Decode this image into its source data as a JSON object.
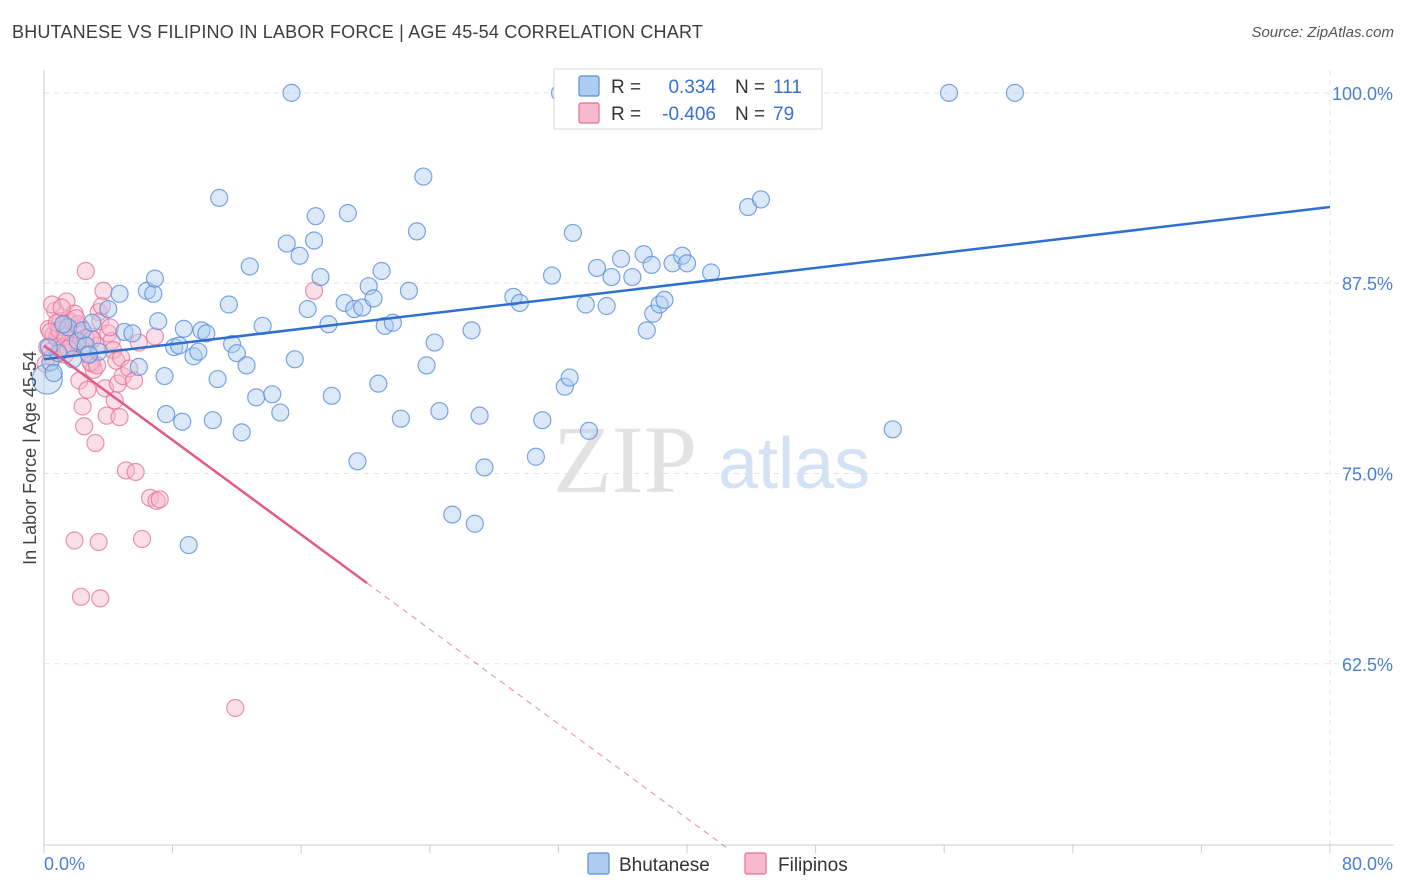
{
  "title": "BHUTANESE VS FILIPINO IN LABOR FORCE | AGE 45-54 CORRELATION CHART",
  "source": "Source: ZipAtlas.com",
  "watermark": {
    "zip": "ZIP",
    "atlas": "atlas"
  },
  "colors": {
    "bhutanese_fill": "#aecbf0",
    "bhutanese_stroke": "#5b8fd9",
    "bhutanese_line": "#2f6fd0",
    "filipino_fill": "#f7b9cd",
    "filipino_stroke": "#e36f96",
    "filipino_line": "#e05a8a",
    "grid": "#e4e4e4",
    "axis_text": "#4a7fd4"
  },
  "legend": {
    "rows": [
      {
        "r_label": "R =",
        "r_value": "0.334",
        "n_label": "N =",
        "n_value": "111",
        "series": "Bhutanese"
      },
      {
        "r_label": "R =",
        "r_value": "-0.406",
        "n_label": "N =",
        "n_value": "79",
        "series": "Filipinos"
      }
    ]
  },
  "bottom_legend": [
    "Bhutanese",
    "Filipinos"
  ],
  "chart_data": {
    "type": "scatter",
    "title": "BHUTANESE VS FILIPINO IN LABOR FORCE | AGE 45-54 CORRELATION CHART",
    "xlabel": "",
    "ylabel": "In Labor Force | Age 45-54",
    "xlim": [
      0,
      80
    ],
    "ylim": [
      50.6,
      101.5
    ],
    "x_tick_labels": [
      {
        "value": 0,
        "label": "0.0%"
      },
      {
        "value": 80,
        "label": "80.0%"
      }
    ],
    "y_tick_labels": [
      {
        "value": 100,
        "label": "100.0%"
      },
      {
        "value": 87.5,
        "label": "87.5%"
      },
      {
        "value": 75,
        "label": "75.0%"
      },
      {
        "value": 62.5,
        "label": "62.5%"
      }
    ],
    "grid": true,
    "series": [
      {
        "name": "Bhutanese",
        "trend": {
          "x": [
            0,
            80
          ],
          "y": [
            82.5,
            92.5
          ],
          "style": "solid"
        },
        "points": [
          [
            0.2,
            81.2
          ],
          [
            0.4,
            82.3
          ],
          [
            0.9,
            82.9
          ],
          [
            1.5,
            84.6
          ],
          [
            2.1,
            83.7
          ],
          [
            2.4,
            84.4
          ],
          [
            2.6,
            83.4
          ],
          [
            3.4,
            83.0
          ],
          [
            4.0,
            85.8
          ],
          [
            4.7,
            86.8
          ],
          [
            5.0,
            84.3
          ],
          [
            5.5,
            84.2
          ],
          [
            6.4,
            87.0
          ],
          [
            6.8,
            86.8
          ],
          [
            6.9,
            87.8
          ],
          [
            7.5,
            81.4
          ],
          [
            7.6,
            78.9
          ],
          [
            8.1,
            83.3
          ],
          [
            8.6,
            78.4
          ],
          [
            8.7,
            84.5
          ],
          [
            9.3,
            82.7
          ],
          [
            9.6,
            83.0
          ],
          [
            9.8,
            84.4
          ],
          [
            10.1,
            84.2
          ],
          [
            10.5,
            78.5
          ],
          [
            10.8,
            81.2
          ],
          [
            10.9,
            93.1
          ],
          [
            11.5,
            86.1
          ],
          [
            11.7,
            83.5
          ],
          [
            12.0,
            82.9
          ],
          [
            12.3,
            77.7
          ],
          [
            12.6,
            82.1
          ],
          [
            12.8,
            88.6
          ],
          [
            13.2,
            80.0
          ],
          [
            13.6,
            84.7
          ],
          [
            14.2,
            80.2
          ],
          [
            14.7,
            79.0
          ],
          [
            15.1,
            90.1
          ],
          [
            15.4,
            100.0
          ],
          [
            15.6,
            82.5
          ],
          [
            15.9,
            89.3
          ],
          [
            16.4,
            85.8
          ],
          [
            16.8,
            90.3
          ],
          [
            16.9,
            91.9
          ],
          [
            17.2,
            87.9
          ],
          [
            17.7,
            84.8
          ],
          [
            17.9,
            80.1
          ],
          [
            18.7,
            86.2
          ],
          [
            18.9,
            92.1
          ],
          [
            19.3,
            85.8
          ],
          [
            19.5,
            75.8
          ],
          [
            19.8,
            85.9
          ],
          [
            20.2,
            87.3
          ],
          [
            20.5,
            86.5
          ],
          [
            20.8,
            80.9
          ],
          [
            21.0,
            88.3
          ],
          [
            21.2,
            84.7
          ],
          [
            21.7,
            84.9
          ],
          [
            22.2,
            78.6
          ],
          [
            22.7,
            87.0
          ],
          [
            23.2,
            90.9
          ],
          [
            23.6,
            94.5
          ],
          [
            23.8,
            82.1
          ],
          [
            24.3,
            83.6
          ],
          [
            24.6,
            79.1
          ],
          [
            25.4,
            72.3
          ],
          [
            26.6,
            84.4
          ],
          [
            26.8,
            71.7
          ],
          [
            27.1,
            78.8
          ],
          [
            27.4,
            75.4
          ],
          [
            29.2,
            86.6
          ],
          [
            29.6,
            86.2
          ],
          [
            30.6,
            76.1
          ],
          [
            31.0,
            78.5
          ],
          [
            31.6,
            88.0
          ],
          [
            32.1,
            100.0
          ],
          [
            32.4,
            80.7
          ],
          [
            32.7,
            81.3
          ],
          [
            32.9,
            90.8
          ],
          [
            33.7,
            86.1
          ],
          [
            33.9,
            77.8
          ],
          [
            34.4,
            88.5
          ],
          [
            35.0,
            86.0
          ],
          [
            35.3,
            87.9
          ],
          [
            35.9,
            89.1
          ],
          [
            36.6,
            87.9
          ],
          [
            37.3,
            89.4
          ],
          [
            37.5,
            84.4
          ],
          [
            37.8,
            88.7
          ],
          [
            37.9,
            85.5
          ],
          [
            38.3,
            86.1
          ],
          [
            38.6,
            86.4
          ],
          [
            39.1,
            88.8
          ],
          [
            39.7,
            89.3
          ],
          [
            40.0,
            88.8
          ],
          [
            41.5,
            88.2
          ],
          [
            43.8,
            92.5
          ],
          [
            44.6,
            93.0
          ],
          [
            52.8,
            77.9
          ],
          [
            56.3,
            100.0
          ],
          [
            60.4,
            100.0
          ],
          [
            0.6,
            81.6
          ],
          [
            1.8,
            82.5
          ],
          [
            3.0,
            84.9
          ],
          [
            5.9,
            82.0
          ],
          [
            7.1,
            85.0
          ],
          [
            8.4,
            83.4
          ],
          [
            9.0,
            70.3
          ],
          [
            0.3,
            83.3
          ],
          [
            1.2,
            84.8
          ],
          [
            2.8,
            82.8
          ]
        ]
      },
      {
        "name": "Filipinos",
        "trend": {
          "x": [
            0,
            20.1
          ],
          "y": [
            83.4,
            67.8
          ],
          "style": "solid"
        },
        "trend_extension": {
          "x": [
            20.1,
            42.5
          ],
          "y": [
            67.8,
            50.4
          ],
          "style": "dashed"
        },
        "points": [
          [
            0.2,
            83.3
          ],
          [
            0.3,
            84.5
          ],
          [
            0.4,
            83.0
          ],
          [
            0.5,
            82.6
          ],
          [
            0.6,
            84.1
          ],
          [
            0.7,
            85.7
          ],
          [
            0.8,
            83.9
          ],
          [
            0.9,
            84.4
          ],
          [
            1.0,
            85.0
          ],
          [
            1.1,
            83.2
          ],
          [
            1.2,
            84.6
          ],
          [
            1.3,
            82.8
          ],
          [
            1.4,
            86.3
          ],
          [
            1.5,
            85.1
          ],
          [
            1.6,
            83.7
          ],
          [
            1.7,
            84.9
          ],
          [
            1.8,
            83.3
          ],
          [
            1.9,
            85.5
          ],
          [
            2.0,
            84.2
          ],
          [
            2.1,
            83.6
          ],
          [
            2.2,
            81.1
          ],
          [
            2.3,
            84.6
          ],
          [
            2.4,
            79.4
          ],
          [
            2.5,
            78.1
          ],
          [
            2.6,
            88.3
          ],
          [
            2.7,
            80.5
          ],
          [
            2.8,
            82.9
          ],
          [
            2.9,
            84.0
          ],
          [
            3.0,
            82.2
          ],
          [
            3.1,
            81.8
          ],
          [
            3.2,
            77.0
          ],
          [
            3.3,
            83.4
          ],
          [
            3.4,
            85.6
          ],
          [
            3.5,
            85.0
          ],
          [
            3.6,
            86.0
          ],
          [
            3.7,
            87.0
          ],
          [
            3.8,
            80.6
          ],
          [
            3.9,
            78.8
          ],
          [
            4.0,
            84.2
          ],
          [
            4.2,
            83.7
          ],
          [
            4.3,
            83.1
          ],
          [
            4.4,
            79.8
          ],
          [
            4.5,
            82.4
          ],
          [
            4.6,
            80.9
          ],
          [
            4.7,
            78.7
          ],
          [
            4.8,
            82.6
          ],
          [
            4.9,
            81.4
          ],
          [
            5.1,
            75.2
          ],
          [
            5.3,
            81.9
          ],
          [
            5.6,
            81.1
          ],
          [
            5.7,
            75.1
          ],
          [
            5.9,
            83.6
          ],
          [
            6.1,
            70.7
          ],
          [
            6.6,
            73.4
          ],
          [
            6.9,
            84.0
          ],
          [
            7.0,
            73.2
          ],
          [
            7.2,
            73.3
          ],
          [
            1.9,
            70.6
          ],
          [
            3.4,
            70.5
          ],
          [
            2.3,
            66.9
          ],
          [
            3.5,
            66.8
          ],
          [
            11.9,
            59.6
          ],
          [
            16.8,
            87.0
          ],
          [
            0.1,
            82.2
          ],
          [
            0.5,
            86.1
          ],
          [
            1.0,
            84.4
          ],
          [
            1.3,
            84.0
          ],
          [
            1.7,
            83.4
          ],
          [
            2.1,
            84.8
          ],
          [
            2.6,
            83.9
          ],
          [
            2.9,
            82.3
          ],
          [
            3.3,
            82.1
          ],
          [
            0.8,
            84.9
          ],
          [
            1.5,
            83.2
          ],
          [
            2.0,
            85.2
          ],
          [
            4.1,
            84.6
          ],
          [
            0.4,
            84.3
          ],
          [
            1.1,
            85.9
          ],
          [
            3.0,
            83.8
          ]
        ]
      }
    ]
  }
}
